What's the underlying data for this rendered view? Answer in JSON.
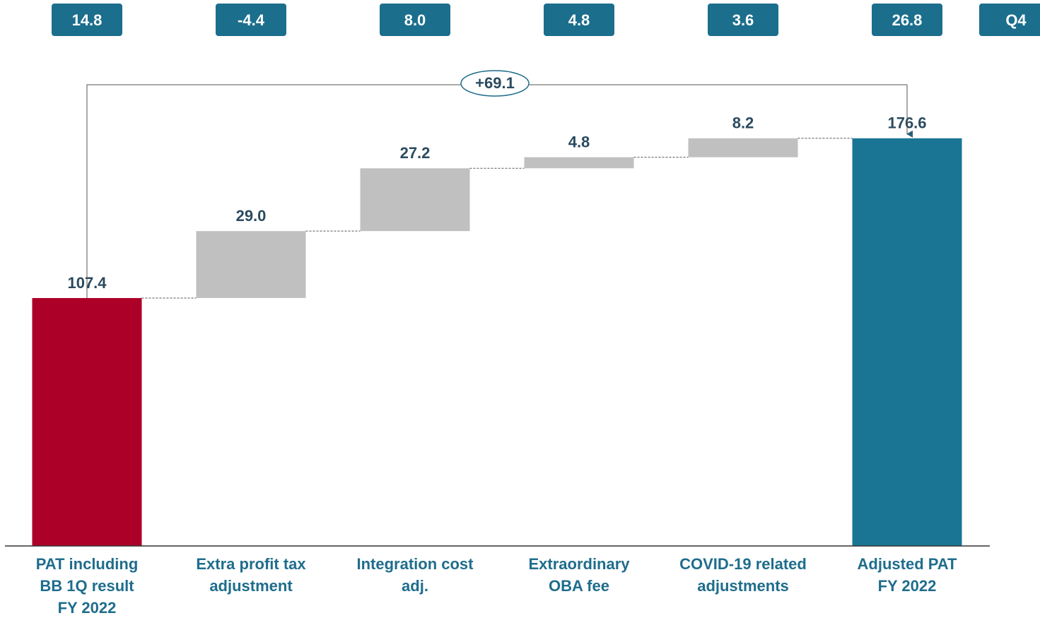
{
  "chart_data": {
    "type": "waterfall",
    "categories": [
      "PAT including\nBB 1Q result\nFY 2022",
      "Extra profit tax\nadjustment",
      "Integration cost\nadj.",
      "Extraordinary\nOBA fee",
      "COVID-19 related\nadjustments",
      "Adjusted PAT\nFY 2022"
    ],
    "values": [
      107.4,
      29.0,
      27.2,
      4.8,
      8.2,
      176.6
    ],
    "value_labels": [
      "107.4",
      "29.0",
      "27.2",
      "4.8",
      "8.2",
      "176.6"
    ],
    "measures": [
      "total",
      "relative",
      "relative",
      "relative",
      "relative",
      "total"
    ],
    "colors": [
      "#ad0029",
      "#c0c0c0",
      "#c0c0c0",
      "#c0c0c0",
      "#c0c0c0",
      "#1a7595"
    ],
    "ylim": [
      0,
      190
    ],
    "annotation": "+69.1",
    "quarter_row": {
      "label": "Q4",
      "values": [
        14.8,
        -4.4,
        8.0,
        4.8,
        3.6,
        26.8
      ],
      "value_labels": [
        "14.8",
        "-4.4",
        "8.0",
        "4.8",
        "3.6",
        "26.8"
      ]
    }
  }
}
